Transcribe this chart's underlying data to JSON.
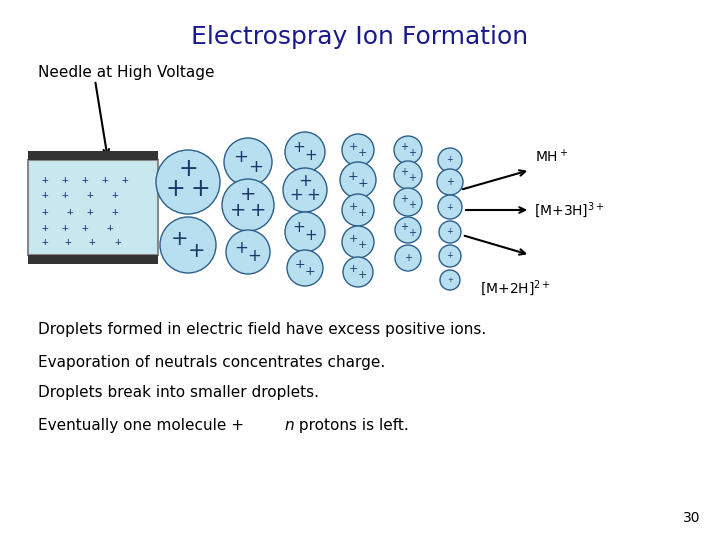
{
  "title": "Electrospray Ion Formation",
  "title_color": "#1a1a8c",
  "title_fontsize": 18,
  "bg_color": "#ffffff",
  "needle_label": "Needle at High Voltage",
  "droplet_fill": "#b8dff0",
  "droplet_edge": "#2c5f8a",
  "text_lines": [
    "Droplets formed in electric field have excess positive ions.",
    "Evaporation of neutrals concentrates charge.",
    "Droplets break into smaller droplets.",
    "Eventually one molecule +  protons is left."
  ],
  "page_number": "30"
}
